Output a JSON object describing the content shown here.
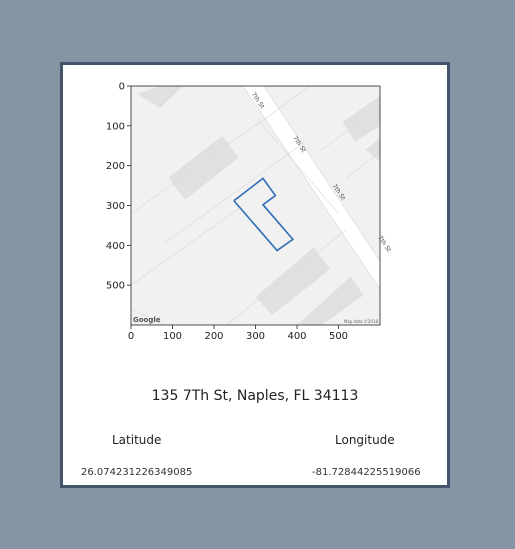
{
  "address": "135 7Th St, Naples, FL 34113",
  "latitude": {
    "label": "Latitude",
    "value": "26.074231226349085"
  },
  "longitude": {
    "label": "Longitude",
    "value": "-81.72844225519066"
  },
  "map": {
    "road_label": "7th St",
    "google_logo": "Google",
    "map_data_text": "Map data ©2018",
    "parcel_outline_color": "#2f6db5"
  },
  "chart_data": {
    "type": "image-with-axes",
    "x_ticks": [
      "0",
      "100",
      "200",
      "300",
      "400",
      "500"
    ],
    "y_ticks": [
      "0",
      "100",
      "200",
      "300",
      "400",
      "500"
    ],
    "xlim": [
      0,
      600
    ],
    "ylim": [
      600,
      0
    ],
    "parcel_outline": [
      [
        248,
        288
      ],
      [
        318,
        232
      ],
      [
        348,
        275
      ],
      [
        318,
        298
      ],
      [
        390,
        385
      ],
      [
        352,
        413
      ],
      [
        248,
        288
      ]
    ]
  }
}
